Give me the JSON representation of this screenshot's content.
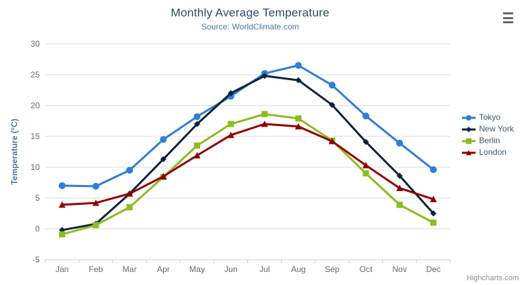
{
  "header": {
    "title": "Monthly Average Temperature",
    "subtitle": "Source: WorldClimate.com"
  },
  "menu": {
    "icon": "hamburger-icon",
    "color": "#666666"
  },
  "credits": {
    "label": "Highcharts.com",
    "color": "#909090"
  },
  "colors": {
    "title": "#274b6d",
    "subtitle": "#4d759e",
    "axis_labels": "#666666",
    "y_axis_title": "#4d759e",
    "grid_line": "#d8d8d8",
    "axis_line": "#c0d0e0",
    "legend_text": "#3e576f",
    "background": "#ffffff"
  },
  "chart_data": {
    "type": "line",
    "title": "Monthly Average Temperature",
    "subtitle": "Source: WorldClimate.com",
    "xlabel": "",
    "ylabel": "Temperature (°C)",
    "categories": [
      "Jan",
      "Feb",
      "Mar",
      "Apr",
      "May",
      "Jun",
      "Jul",
      "Aug",
      "Sep",
      "Oct",
      "Nov",
      "Dec"
    ],
    "series": [
      {
        "name": "Tokyo",
        "color": "#2f7ed8",
        "marker": "circle",
        "values": [
          7.0,
          6.9,
          9.5,
          14.5,
          18.2,
          21.5,
          25.2,
          26.5,
          23.3,
          18.3,
          13.9,
          9.6
        ]
      },
      {
        "name": "New York",
        "color": "#0d233a",
        "marker": "diamond",
        "values": [
          -0.2,
          0.8,
          5.7,
          11.3,
          17.0,
          22.0,
          24.8,
          24.1,
          20.1,
          14.1,
          8.6,
          2.5
        ]
      },
      {
        "name": "Berlin",
        "color": "#8bbc21",
        "marker": "square",
        "values": [
          -0.9,
          0.6,
          3.5,
          8.4,
          13.5,
          17.0,
          18.6,
          17.9,
          14.3,
          9.0,
          3.9,
          1.0
        ]
      },
      {
        "name": "London",
        "color": "#910000",
        "marker": "triangle",
        "values": [
          3.9,
          4.2,
          5.7,
          8.5,
          11.9,
          15.2,
          17.0,
          16.6,
          14.2,
          10.3,
          6.6,
          4.8
        ]
      }
    ],
    "ylim": [
      -5,
      30
    ],
    "ytick_interval": 5,
    "yticks": [
      -5,
      0,
      5,
      10,
      15,
      20,
      25,
      30
    ],
    "grid": true,
    "legend_position": "right"
  }
}
